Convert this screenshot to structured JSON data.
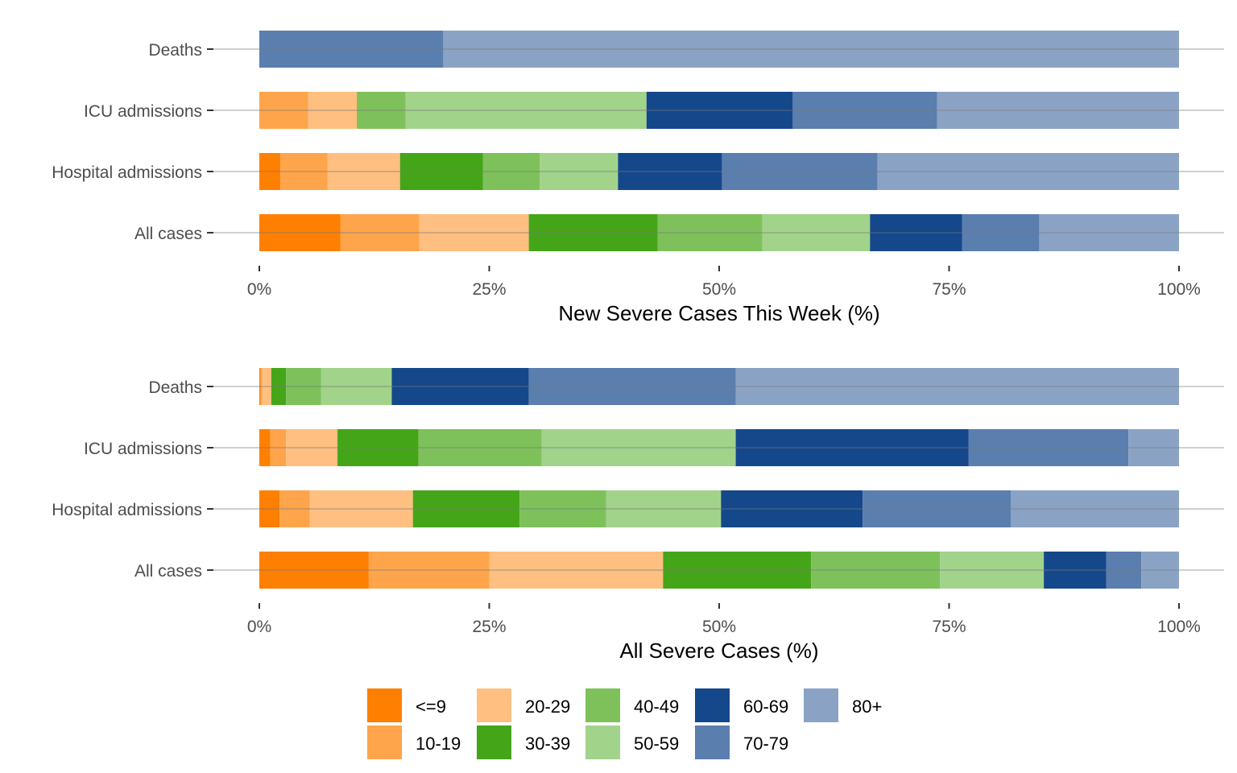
{
  "chart_data": [
    {
      "type": "bar",
      "orientation": "horizontal",
      "stacked": true,
      "normalized": true,
      "xlabel": "New Severe Cases This Week (%)",
      "ylabel": "",
      "xlim": [
        0,
        100
      ],
      "xticks": [
        "0%",
        "25%",
        "50%",
        "75%",
        "100%"
      ],
      "xtick_values": [
        0,
        25,
        50,
        75,
        100
      ],
      "categories": [
        "All cases",
        "Hospital admissions",
        "ICU admissions",
        "Deaths"
      ],
      "grid": "horizontal major gridlines on category lines",
      "series": [
        {
          "name": "<=9",
          "values": [
            8.8,
            2.3,
            0.0,
            0.0
          ]
        },
        {
          "name": "10-19",
          "values": [
            8.6,
            5.1,
            5.3,
            0.0
          ]
        },
        {
          "name": "20-29",
          "values": [
            11.9,
            7.9,
            5.3,
            0.0
          ]
        },
        {
          "name": "30-39",
          "values": [
            14.0,
            9.0,
            0.0,
            0.0
          ]
        },
        {
          "name": "40-49",
          "values": [
            11.4,
            6.2,
            5.3,
            0.0
          ]
        },
        {
          "name": "50-59",
          "values": [
            11.7,
            8.5,
            26.2,
            0.0
          ]
        },
        {
          "name": "60-69",
          "values": [
            10.0,
            11.3,
            15.9,
            0.0
          ]
        },
        {
          "name": "70-79",
          "values": [
            8.4,
            16.9,
            15.7,
            20.0
          ]
        },
        {
          "name": "80+",
          "values": [
            15.2,
            32.8,
            26.3,
            80.0
          ]
        }
      ]
    },
    {
      "type": "bar",
      "orientation": "horizontal",
      "stacked": true,
      "normalized": true,
      "xlabel": "All Severe Cases (%)",
      "ylabel": "",
      "xlim": [
        0,
        100
      ],
      "xticks": [
        "0%",
        "25%",
        "50%",
        "75%",
        "100%"
      ],
      "xtick_values": [
        0,
        25,
        50,
        75,
        100
      ],
      "categories": [
        "All cases",
        "Hospital admissions",
        "ICU admissions",
        "Deaths"
      ],
      "grid": "horizontal major gridlines on category lines",
      "series": [
        {
          "name": "<=9",
          "values": [
            11.9,
            2.2,
            1.2,
            0.15
          ]
        },
        {
          "name": "10-19",
          "values": [
            13.1,
            3.3,
            1.7,
            0.15
          ]
        },
        {
          "name": "20-29",
          "values": [
            18.9,
            11.2,
            5.6,
            1.0
          ]
        },
        {
          "name": "30-39",
          "values": [
            16.1,
            11.6,
            8.8,
            1.6
          ]
        },
        {
          "name": "40-49",
          "values": [
            14.0,
            9.4,
            13.4,
            3.8
          ]
        },
        {
          "name": "50-59",
          "values": [
            11.3,
            12.5,
            21.1,
            7.7
          ]
        },
        {
          "name": "60-69",
          "values": [
            6.8,
            15.4,
            25.3,
            14.9
          ]
        },
        {
          "name": "70-79",
          "values": [
            3.8,
            16.1,
            17.4,
            22.5
          ]
        },
        {
          "name": "80+",
          "values": [
            4.1,
            18.3,
            5.5,
            48.2
          ]
        }
      ]
    }
  ],
  "legend": {
    "placement": "bottom",
    "items": [
      {
        "label": "<=9",
        "color": "#ff7f00"
      },
      {
        "label": "10-19",
        "color": "#fea54b"
      },
      {
        "label": "20-29",
        "color": "#febf80"
      },
      {
        "label": "30-39",
        "color": "#45a519"
      },
      {
        "label": "40-49",
        "color": "#7ec15b"
      },
      {
        "label": "50-59",
        "color": "#a1d38b"
      },
      {
        "label": "60-69",
        "color": "#15478b"
      },
      {
        "label": "70-79",
        "color": "#5a7eae"
      },
      {
        "label": "80+",
        "color": "#8aa3c5"
      }
    ]
  }
}
